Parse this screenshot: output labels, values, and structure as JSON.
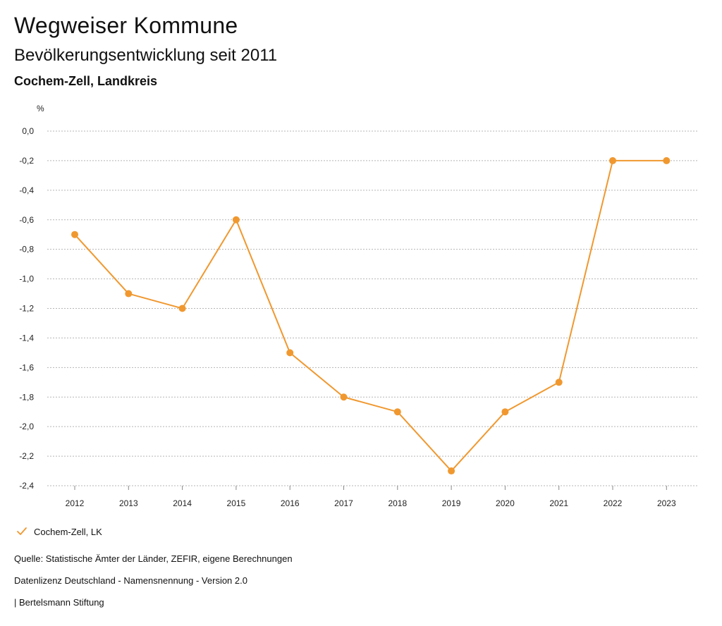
{
  "header": {
    "title": "Wegweiser Kommune",
    "subtitle": "Bevölkerungsentwicklung seit 2011",
    "region": "Cochem-Zell, Landkreis"
  },
  "legend": {
    "label": "Cochem-Zell, LK"
  },
  "footer": {
    "source": "Quelle: Statistische Ämter der Länder, ZEFIR, eigene Berechnungen",
    "license": "Datenlizenz Deutschland - Namensnennung - Version 2.0",
    "credit": "| Bertelsmann Stiftung"
  },
  "colors": {
    "series": "#f0982f",
    "grid": "#b5b5b5"
  },
  "chart_data": {
    "type": "line",
    "title": "Bevölkerungsentwicklung seit 2011",
    "ylabel": "%",
    "xlabel": "",
    "x": [
      "2012",
      "2013",
      "2014",
      "2015",
      "2016",
      "2017",
      "2018",
      "2019",
      "2020",
      "2021",
      "2022",
      "2023"
    ],
    "series": [
      {
        "name": "Cochem-Zell, LK",
        "values": [
          -0.7,
          -1.1,
          -1.2,
          -0.6,
          -1.5,
          -1.8,
          -1.9,
          -2.3,
          -1.9,
          -1.7,
          -0.2,
          -0.2
        ]
      }
    ],
    "ylim": [
      -2.4,
      0.0
    ],
    "yticks": [
      0.0,
      -0.2,
      -0.4,
      -0.6,
      -0.8,
      -1.0,
      -1.2,
      -1.4,
      -1.6,
      -1.8,
      -2.0,
      -2.2,
      -2.4
    ],
    "ytick_labels": [
      "0,0",
      "-0,2",
      "-0,4",
      "-0,6",
      "-0,8",
      "-1,0",
      "-1,2",
      "-1,4",
      "-1,6",
      "-1,8",
      "-2,0",
      "-2,2",
      "-2,4"
    ],
    "grid": true,
    "legend_position": "bottom-left"
  }
}
